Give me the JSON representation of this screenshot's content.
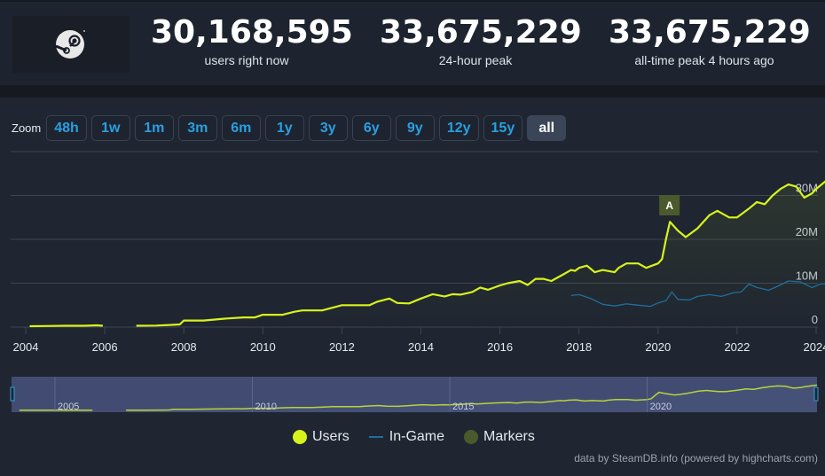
{
  "header": {
    "stats": [
      {
        "value": "30,168,595",
        "label": "users right now"
      },
      {
        "value": "33,675,229",
        "label": "24-hour peak"
      },
      {
        "value": "33,675,229",
        "label": "all-time peak 4 hours ago"
      }
    ]
  },
  "zoom": {
    "label": "Zoom",
    "buttons": [
      "48h",
      "1w",
      "1m",
      "3m",
      "6m",
      "1y",
      "3y",
      "6y",
      "9y",
      "12y",
      "15y",
      "all"
    ],
    "active": "all"
  },
  "colors": {
    "users": "#d8f31c",
    "ingame": "#1f6f9c",
    "markers": "#4a5a2c",
    "grid": "#3c4554",
    "navigator_mask": "#3a4580"
  },
  "chart_data": {
    "type": "line",
    "title": "",
    "xlabel": "",
    "ylabel": "",
    "x_ticks": [
      "2004",
      "2006",
      "2008",
      "2010",
      "2012",
      "2014",
      "2016",
      "2018",
      "2020",
      "2022",
      "2024"
    ],
    "y_ticks": [
      "0",
      "10M",
      "20M",
      "30M"
    ],
    "ylim": [
      0,
      40000000
    ],
    "grid": true,
    "legend_position": "bottom",
    "series": [
      {
        "name": "Users",
        "segments": [
          [
            [
              2004.1,
              0.2
            ],
            [
              2004.5,
              0.25
            ],
            [
              2005.0,
              0.3
            ],
            [
              2005.5,
              0.3
            ],
            [
              2005.8,
              0.4
            ],
            [
              2005.95,
              0.3
            ]
          ],
          [
            [
              2006.8,
              0.3
            ],
            [
              2007.3,
              0.35
            ],
            [
              2007.7,
              0.5
            ],
            [
              2007.9,
              0.6
            ],
            [
              2008.0,
              1.5
            ],
            [
              2008.5,
              1.5
            ],
            [
              2009.0,
              1.9
            ],
            [
              2009.5,
              2.2
            ],
            [
              2009.8,
              2.2
            ],
            [
              2010.0,
              2.8
            ],
            [
              2010.5,
              2.8
            ],
            [
              2010.8,
              3.5
            ],
            [
              2011.0,
              3.8
            ],
            [
              2011.5,
              3.8
            ],
            [
              2011.8,
              4.5
            ],
            [
              2012.0,
              5.0
            ],
            [
              2012.5,
              5.0
            ],
            [
              2012.7,
              5.0
            ],
            [
              2012.9,
              5.8
            ],
            [
              2013.2,
              6.5
            ],
            [
              2013.4,
              5.5
            ],
            [
              2013.7,
              5.4
            ],
            [
              2014.0,
              6.5
            ],
            [
              2014.3,
              7.5
            ],
            [
              2014.6,
              7.0
            ],
            [
              2014.8,
              7.5
            ],
            [
              2015.0,
              7.4
            ],
            [
              2015.3,
              8.0
            ],
            [
              2015.5,
              9.0
            ],
            [
              2015.7,
              8.5
            ],
            [
              2016.0,
              9.5
            ],
            [
              2016.2,
              10.0
            ],
            [
              2016.5,
              10.5
            ],
            [
              2016.7,
              9.6
            ],
            [
              2016.9,
              11.0
            ],
            [
              2017.1,
              11.0
            ],
            [
              2017.3,
              10.5
            ],
            [
              2017.6,
              12.0
            ],
            [
              2017.8,
              13.0
            ],
            [
              2017.9,
              12.8
            ],
            [
              2018.0,
              13.5
            ],
            [
              2018.2,
              14.0
            ],
            [
              2018.4,
              12.5
            ],
            [
              2018.6,
              13.0
            ],
            [
              2018.9,
              12.5
            ],
            [
              2019.0,
              13.5
            ],
            [
              2019.2,
              14.5
            ],
            [
              2019.5,
              14.5
            ],
            [
              2019.7,
              13.5
            ],
            [
              2020.0,
              14.5
            ],
            [
              2020.1,
              15.5
            ],
            [
              2020.2,
              20.0
            ],
            [
              2020.3,
              24.0
            ],
            [
              2020.5,
              22.0
            ],
            [
              2020.7,
              20.5
            ],
            [
              2021.0,
              22.5
            ],
            [
              2021.3,
              25.5
            ],
            [
              2021.5,
              26.5
            ],
            [
              2021.8,
              25.0
            ],
            [
              2022.0,
              25.0
            ],
            [
              2022.3,
              27.0
            ],
            [
              2022.5,
              28.5
            ],
            [
              2022.7,
              28.0
            ],
            [
              2022.9,
              30.0
            ],
            [
              2023.1,
              31.5
            ],
            [
              2023.3,
              32.5
            ],
            [
              2023.5,
              32.0
            ],
            [
              2023.7,
              29.5
            ],
            [
              2023.9,
              30.5
            ],
            [
              2024.0,
              31.5
            ],
            [
              2024.3,
              33.7
            ]
          ]
        ]
      },
      {
        "name": "In-Game",
        "segments": [
          [
            [
              2017.8,
              7.2
            ],
            [
              2018.0,
              7.4
            ],
            [
              2018.3,
              6.5
            ],
            [
              2018.6,
              5.2
            ],
            [
              2018.9,
              4.8
            ],
            [
              2019.2,
              5.3
            ],
            [
              2019.5,
              5.0
            ],
            [
              2019.8,
              4.7
            ],
            [
              2020.0,
              5.5
            ],
            [
              2020.2,
              6.0
            ],
            [
              2020.35,
              8.0
            ],
            [
              2020.5,
              6.3
            ],
            [
              2020.8,
              6.2
            ],
            [
              2021.0,
              7.0
            ],
            [
              2021.3,
              7.4
            ],
            [
              2021.6,
              7.0
            ],
            [
              2021.9,
              7.8
            ],
            [
              2022.1,
              8.0
            ],
            [
              2022.3,
              9.8
            ],
            [
              2022.5,
              9.0
            ],
            [
              2022.8,
              8.4
            ],
            [
              2023.0,
              9.2
            ],
            [
              2023.3,
              10.5
            ],
            [
              2023.6,
              10.3
            ],
            [
              2023.9,
              9.0
            ],
            [
              2024.1,
              9.8
            ],
            [
              2024.3,
              10.0
            ]
          ]
        ]
      }
    ],
    "annotations": [
      {
        "label": "A",
        "x": 2020.3,
        "series": "Markers"
      }
    ]
  },
  "navigator": {
    "labels": [
      "2005",
      "2010",
      "2015",
      "2020"
    ]
  },
  "legend": {
    "items": [
      {
        "label": "Users",
        "symbol": "dot"
      },
      {
        "label": "In-Game",
        "symbol": "line"
      },
      {
        "label": "Markers",
        "symbol": "dot"
      }
    ]
  },
  "credits": "data by SteamDB.info (powered by highcharts.com)"
}
